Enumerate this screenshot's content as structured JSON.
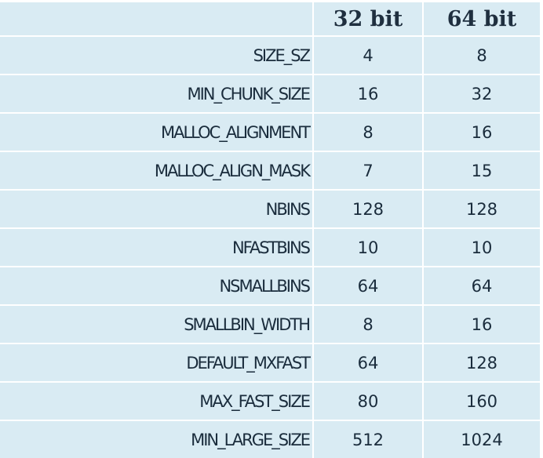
{
  "table": {
    "headers": [
      "",
      "32 bit",
      "64 bit"
    ],
    "rows": [
      {
        "name": "SIZE_SZ",
        "v32": "4",
        "v64": "8"
      },
      {
        "name": "MIN_CHUNK_SIZE",
        "v32": "16",
        "v64": "32"
      },
      {
        "name": "MALLOC_ALIGNMENT",
        "v32": "8",
        "v64": "16"
      },
      {
        "name": "MALLOC_ALIGN_MASK",
        "v32": "7",
        "v64": "15"
      },
      {
        "name": "NBINS",
        "v32": "128",
        "v64": "128"
      },
      {
        "name": "NFASTBINS",
        "v32": "10",
        "v64": "10"
      },
      {
        "name": "NSMALLBINS",
        "v32": "64",
        "v64": "64"
      },
      {
        "name": "SMALLBIN_WIDTH",
        "v32": "8",
        "v64": "16"
      },
      {
        "name": "DEFAULT_MXFAST",
        "v32": "64",
        "v64": "128"
      },
      {
        "name": "MAX_FAST_SIZE",
        "v32": "80",
        "v64": "160"
      },
      {
        "name": "MIN_LARGE_SIZE",
        "v32": "512",
        "v64": "1024"
      }
    ]
  },
  "colors": {
    "cell_bg": "#d9ebf3",
    "grid": "#ffffff",
    "text": "#1a2c3c"
  }
}
